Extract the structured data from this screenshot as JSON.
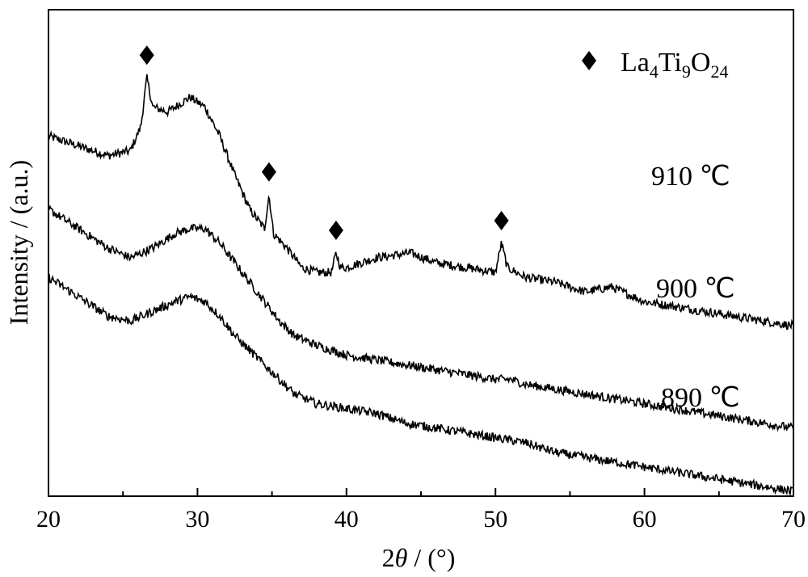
{
  "chart_data": {
    "type": "line",
    "xlabel": {
      "prefix": "2",
      "italic": "θ",
      "suffix": " / (°)"
    },
    "ylabel": "Intensity / (a.u.)",
    "xlim": [
      20,
      70
    ],
    "xticks": [
      20,
      30,
      40,
      50,
      60,
      70
    ],
    "yticks_shown": false,
    "legend": {
      "marker": "diamond",
      "label_main": "La",
      "sub1": "4",
      "mid": "Ti",
      "sub2": "9",
      "end": "O",
      "sub3": "24",
      "position": "top-right"
    },
    "series": [
      {
        "name": "910 ℃",
        "label": "910 ℃",
        "points": [
          [
            20,
            0.74
          ],
          [
            22,
            0.72
          ],
          [
            24,
            0.7
          ],
          [
            25.5,
            0.71
          ],
          [
            26.2,
            0.76
          ],
          [
            26.6,
            0.86
          ],
          [
            27.0,
            0.8
          ],
          [
            28,
            0.79
          ],
          [
            29.5,
            0.82
          ],
          [
            30.5,
            0.8
          ],
          [
            31.5,
            0.74
          ],
          [
            32.5,
            0.66
          ],
          [
            33.5,
            0.59
          ],
          [
            34.5,
            0.55
          ],
          [
            34.8,
            0.62
          ],
          [
            35.1,
            0.54
          ],
          [
            36,
            0.51
          ],
          [
            37,
            0.47
          ],
          [
            38,
            0.46
          ],
          [
            39,
            0.46
          ],
          [
            39.3,
            0.5
          ],
          [
            39.6,
            0.47
          ],
          [
            40,
            0.47
          ],
          [
            42,
            0.49
          ],
          [
            44.3,
            0.5
          ],
          [
            46,
            0.48
          ],
          [
            48,
            0.47
          ],
          [
            50,
            0.46
          ],
          [
            50.4,
            0.52
          ],
          [
            50.8,
            0.47
          ],
          [
            52,
            0.45
          ],
          [
            54,
            0.44
          ],
          [
            56,
            0.42
          ],
          [
            57.8,
            0.43
          ],
          [
            60,
            0.4
          ],
          [
            62,
            0.39
          ],
          [
            64,
            0.38
          ],
          [
            66,
            0.37
          ],
          [
            68,
            0.36
          ],
          [
            70,
            0.35
          ]
        ],
        "peaks": [
          26.6,
          34.8,
          39.3,
          50.4
        ]
      },
      {
        "name": "900 ℃",
        "label": "900 ℃",
        "points": [
          [
            20,
            0.59
          ],
          [
            22,
            0.55
          ],
          [
            24,
            0.51
          ],
          [
            25.5,
            0.49
          ],
          [
            27,
            0.51
          ],
          [
            28.5,
            0.54
          ],
          [
            29.5,
            0.55
          ],
          [
            30.5,
            0.55
          ],
          [
            31.5,
            0.52
          ],
          [
            32.5,
            0.48
          ],
          [
            33.5,
            0.44
          ],
          [
            34.5,
            0.4
          ],
          [
            35.5,
            0.36
          ],
          [
            36.5,
            0.33
          ],
          [
            38,
            0.31
          ],
          [
            40,
            0.29
          ],
          [
            42,
            0.28
          ],
          [
            44,
            0.27
          ],
          [
            46,
            0.26
          ],
          [
            48,
            0.25
          ],
          [
            50,
            0.24
          ],
          [
            51,
            0.24
          ],
          [
            52,
            0.23
          ],
          [
            54,
            0.22
          ],
          [
            56,
            0.21
          ],
          [
            58,
            0.2
          ],
          [
            60,
            0.19
          ],
          [
            62,
            0.18
          ],
          [
            64,
            0.17
          ],
          [
            66,
            0.16
          ],
          [
            68,
            0.15
          ],
          [
            70,
            0.14
          ]
        ]
      },
      {
        "name": "890 ℃",
        "label": "890 ℃",
        "points": [
          [
            20,
            0.45
          ],
          [
            22,
            0.41
          ],
          [
            24,
            0.37
          ],
          [
            25.5,
            0.36
          ],
          [
            27,
            0.38
          ],
          [
            28.5,
            0.4
          ],
          [
            29.5,
            0.41
          ],
          [
            30.5,
            0.4
          ],
          [
            31.5,
            0.37
          ],
          [
            32.5,
            0.33
          ],
          [
            33.5,
            0.3
          ],
          [
            34.5,
            0.27
          ],
          [
            35.5,
            0.24
          ],
          [
            36.5,
            0.21
          ],
          [
            38,
            0.19
          ],
          [
            40,
            0.18
          ],
          [
            42,
            0.17
          ],
          [
            44,
            0.15
          ],
          [
            46,
            0.14
          ],
          [
            48,
            0.13
          ],
          [
            50,
            0.12
          ],
          [
            52,
            0.11
          ],
          [
            54,
            0.09
          ],
          [
            56,
            0.08
          ],
          [
            58,
            0.07
          ],
          [
            60,
            0.06
          ],
          [
            62,
            0.05
          ],
          [
            64,
            0.04
          ],
          [
            66,
            0.03
          ],
          [
            68,
            0.02
          ],
          [
            70,
            0.01
          ]
        ]
      }
    ]
  }
}
